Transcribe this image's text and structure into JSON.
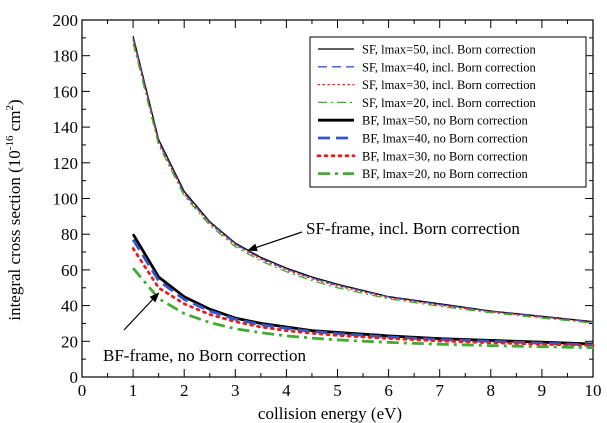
{
  "chart_data": {
    "type": "line",
    "title": "",
    "xlabel": "collision energy (eV)",
    "ylabel": {
      "prefix": "integral cross section (10",
      "exponent": "-16",
      "unit": " cm",
      "unit_exponent": "2",
      "suffix": ")"
    },
    "xlim": [
      0,
      10
    ],
    "ylim": [
      0,
      200
    ],
    "xticks": [
      0,
      1,
      2,
      3,
      4,
      5,
      6,
      7,
      8,
      9,
      10
    ],
    "yticks": [
      0,
      20,
      40,
      60,
      80,
      100,
      120,
      140,
      160,
      180,
      200
    ],
    "grid": false,
    "legend_position": "top-right",
    "annotations": [
      {
        "text": "SF-frame, incl. Born correction",
        "arrow_to": [
          3.25,
          71
        ]
      },
      {
        "text": "BF-frame, no Born correction",
        "arrow_to": [
          1.5,
          47
        ]
      }
    ],
    "series": [
      {
        "name": "SF, lmax=50, incl. Born correction",
        "color": "#000000",
        "style": "solid",
        "width": "thin",
        "x": [
          1,
          1.5,
          2,
          2.5,
          3,
          3.5,
          4,
          4.5,
          5,
          6,
          7,
          8,
          9,
          10
        ],
        "y": [
          191,
          133,
          104,
          87,
          75,
          67,
          61,
          56,
          52,
          45,
          41,
          37,
          34,
          31
        ]
      },
      {
        "name": "SF, lmax=40, incl. Born correction",
        "color": "#3355cc",
        "style": "dashed",
        "width": "thin",
        "x": [
          1,
          1.5,
          2,
          2.5,
          3,
          3.5,
          4,
          4.5,
          5,
          6,
          7,
          8,
          9,
          10
        ],
        "y": [
          190,
          132,
          103,
          86.5,
          74.5,
          66.5,
          60.5,
          55.5,
          51.5,
          44.8,
          40.6,
          36.8,
          33.8,
          30.8
        ]
      },
      {
        "name": "SF, lmax=30, incl. Born correction",
        "color": "#dd2222",
        "style": "dotted",
        "width": "thin",
        "x": [
          1,
          1.5,
          2,
          2.5,
          3,
          3.5,
          4,
          4.5,
          5,
          6,
          7,
          8,
          9,
          10
        ],
        "y": [
          189,
          131.5,
          102.5,
          86,
          74,
          66,
          60,
          55,
          51,
          44.5,
          40.3,
          36.5,
          33.5,
          30.6
        ]
      },
      {
        "name": "SF, lmax=20, incl. Born correction",
        "color": "#44aa33",
        "style": "dashdot",
        "width": "thin",
        "x": [
          1,
          1.5,
          2,
          2.5,
          3,
          3.5,
          4,
          4.5,
          5,
          6,
          7,
          8,
          9,
          10
        ],
        "y": [
          187,
          130,
          101.5,
          85,
          73,
          65,
          59,
          54,
          50,
          43.8,
          39.6,
          36,
          33,
          30.2
        ]
      },
      {
        "name": "BF, lmax=50, no Born correction",
        "color": "#000000",
        "style": "solid",
        "width": "thick",
        "x": [
          1,
          1.5,
          2,
          2.5,
          3,
          3.5,
          4,
          4.5,
          5,
          6,
          7,
          8,
          9,
          10
        ],
        "y": [
          80,
          56,
          45,
          38,
          33,
          30,
          28,
          26,
          25,
          23,
          21.5,
          20.5,
          19.5,
          18.5
        ]
      },
      {
        "name": "BF, lmax=40, no Born correction",
        "color": "#3355cc",
        "style": "dashed",
        "width": "thick",
        "x": [
          1,
          1.5,
          2,
          2.5,
          3,
          3.5,
          4,
          4.5,
          5,
          6,
          7,
          8,
          9,
          10
        ],
        "y": [
          77,
          54,
          43.5,
          37,
          32.3,
          29.3,
          27.3,
          25.5,
          24.3,
          22.4,
          21,
          20,
          19,
          18
        ]
      },
      {
        "name": "BF, lmax=30, no Born correction",
        "color": "#dd2222",
        "style": "dotted",
        "width": "thick",
        "x": [
          1,
          1.5,
          2,
          2.5,
          3,
          3.5,
          4,
          4.5,
          5,
          6,
          7,
          8,
          9,
          10
        ],
        "y": [
          72,
          50,
          41,
          35,
          31,
          28,
          26,
          24.5,
          23.3,
          21.6,
          20.2,
          19.2,
          18.4,
          17.6
        ]
      },
      {
        "name": "BF, lmax=20, no Born correction",
        "color": "#44aa33",
        "style": "dashdot",
        "width": "thick",
        "x": [
          1,
          1.5,
          2,
          2.5,
          3,
          3.5,
          4,
          4.5,
          5,
          6,
          7,
          8,
          9,
          10
        ],
        "y": [
          61,
          44,
          35.5,
          30.5,
          27,
          24.8,
          23,
          21.8,
          20.8,
          19.4,
          18.4,
          17.6,
          17,
          16.4
        ]
      }
    ]
  }
}
